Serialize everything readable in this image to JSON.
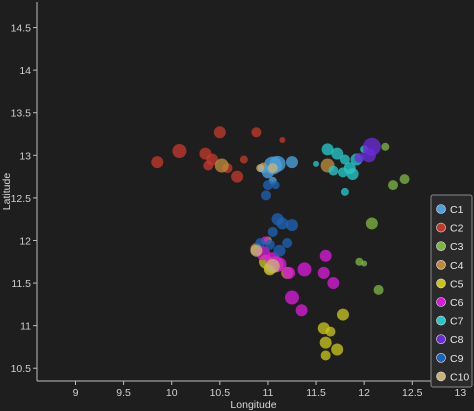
{
  "chart_data": {
    "type": "scatter",
    "xlabel": "Longitude",
    "ylabel": "Latitude",
    "xlim": [
      8.6,
      13.1
    ],
    "ylim": [
      10.35,
      14.8
    ],
    "xticks": [
      "9",
      "9.5",
      "10",
      "10.5",
      "11",
      "11.5",
      "12",
      "12.5",
      "13"
    ],
    "yticks": [
      "10.5",
      "11",
      "11.5",
      "12",
      "12.5",
      "13",
      "13.5",
      "14",
      "14.5"
    ],
    "grid": false,
    "legend_position": "bottom-right",
    "series": [
      {
        "name": "C1",
        "color": "#4aa3df",
        "points": [
          {
            "x": 11.05,
            "y": 12.88,
            "s": 9
          },
          {
            "x": 11.1,
            "y": 12.9,
            "s": 8
          },
          {
            "x": 11.0,
            "y": 12.8,
            "s": 6
          },
          {
            "x": 10.95,
            "y": 12.85,
            "s": 5
          },
          {
            "x": 11.25,
            "y": 12.92,
            "s": 6
          },
          {
            "x": 11.05,
            "y": 12.7,
            "s": 4
          }
        ]
      },
      {
        "name": "C2",
        "color": "#c0392b",
        "points": [
          {
            "x": 9.85,
            "y": 12.92,
            "s": 6
          },
          {
            "x": 10.08,
            "y": 13.05,
            "s": 7
          },
          {
            "x": 10.35,
            "y": 13.02,
            "s": 6
          },
          {
            "x": 10.42,
            "y": 12.95,
            "s": 6
          },
          {
            "x": 10.5,
            "y": 13.27,
            "s": 6
          },
          {
            "x": 10.58,
            "y": 12.85,
            "s": 5
          },
          {
            "x": 10.68,
            "y": 12.75,
            "s": 6
          },
          {
            "x": 10.38,
            "y": 12.88,
            "s": 5
          },
          {
            "x": 10.75,
            "y": 12.95,
            "s": 4
          },
          {
            "x": 10.88,
            "y": 13.27,
            "s": 5
          },
          {
            "x": 11.15,
            "y": 13.18,
            "s": 3
          }
        ]
      },
      {
        "name": "C3",
        "color": "#7cb342",
        "points": [
          {
            "x": 12.3,
            "y": 12.65,
            "s": 5
          },
          {
            "x": 12.42,
            "y": 12.72,
            "s": 5
          },
          {
            "x": 12.22,
            "y": 13.1,
            "s": 4
          },
          {
            "x": 12.08,
            "y": 12.2,
            "s": 6
          },
          {
            "x": 12.15,
            "y": 11.42,
            "s": 5
          },
          {
            "x": 11.95,
            "y": 11.75,
            "s": 4
          },
          {
            "x": 12.0,
            "y": 11.73,
            "s": 3
          }
        ]
      },
      {
        "name": "C4",
        "color": "#c08a3a",
        "points": [
          {
            "x": 10.52,
            "y": 12.88,
            "s": 7
          },
          {
            "x": 10.95,
            "y": 12.88,
            "s": 3
          },
          {
            "x": 11.62,
            "y": 12.88,
            "s": 7
          },
          {
            "x": 11.0,
            "y": 12.0,
            "s": 4
          },
          {
            "x": 10.88,
            "y": 11.9,
            "s": 6
          },
          {
            "x": 11.08,
            "y": 11.72,
            "s": 8
          },
          {
            "x": 11.02,
            "y": 11.68,
            "s": 6
          },
          {
            "x": 11.2,
            "y": 11.62,
            "s": 6
          }
        ]
      },
      {
        "name": "C5",
        "color": "#c7c31b",
        "points": [
          {
            "x": 10.98,
            "y": 11.75,
            "s": 7
          },
          {
            "x": 11.02,
            "y": 11.66,
            "s": 6
          },
          {
            "x": 11.78,
            "y": 11.13,
            "s": 6
          },
          {
            "x": 11.58,
            "y": 10.97,
            "s": 6
          },
          {
            "x": 11.65,
            "y": 10.93,
            "s": 5
          },
          {
            "x": 11.6,
            "y": 10.8,
            "s": 6
          },
          {
            "x": 11.72,
            "y": 10.72,
            "s": 6
          },
          {
            "x": 11.6,
            "y": 10.65,
            "s": 5
          }
        ]
      },
      {
        "name": "C6",
        "color": "#d81bd8",
        "points": [
          {
            "x": 10.95,
            "y": 11.85,
            "s": 7
          },
          {
            "x": 11.05,
            "y": 11.78,
            "s": 7
          },
          {
            "x": 11.12,
            "y": 11.72,
            "s": 7
          },
          {
            "x": 11.22,
            "y": 11.62,
            "s": 6
          },
          {
            "x": 11.38,
            "y": 11.66,
            "s": 7
          },
          {
            "x": 11.58,
            "y": 11.62,
            "s": 6
          },
          {
            "x": 11.6,
            "y": 11.82,
            "s": 6
          },
          {
            "x": 11.68,
            "y": 11.5,
            "s": 6
          },
          {
            "x": 11.25,
            "y": 11.33,
            "s": 7
          },
          {
            "x": 11.35,
            "y": 11.18,
            "s": 6
          },
          {
            "x": 10.97,
            "y": 12.0,
            "s": 4
          }
        ]
      },
      {
        "name": "C7",
        "color": "#26c6c6",
        "points": [
          {
            "x": 11.62,
            "y": 13.07,
            "s": 6
          },
          {
            "x": 11.72,
            "y": 13.02,
            "s": 6
          },
          {
            "x": 11.8,
            "y": 12.95,
            "s": 5
          },
          {
            "x": 11.85,
            "y": 12.85,
            "s": 6
          },
          {
            "x": 11.92,
            "y": 12.95,
            "s": 6
          },
          {
            "x": 11.68,
            "y": 12.82,
            "s": 5
          },
          {
            "x": 11.78,
            "y": 12.8,
            "s": 5
          },
          {
            "x": 11.88,
            "y": 12.78,
            "s": 6
          },
          {
            "x": 12.0,
            "y": 13.07,
            "s": 4
          },
          {
            "x": 11.8,
            "y": 12.57,
            "s": 4
          },
          {
            "x": 11.5,
            "y": 12.9,
            "s": 3
          }
        ]
      },
      {
        "name": "C8",
        "color": "#6a2bd8",
        "points": [
          {
            "x": 12.08,
            "y": 13.1,
            "s": 9
          },
          {
            "x": 12.05,
            "y": 13.0,
            "s": 7
          },
          {
            "x": 11.95,
            "y": 12.97,
            "s": 5
          }
        ]
      },
      {
        "name": "C9",
        "color": "#1f63b5",
        "points": [
          {
            "x": 10.98,
            "y": 12.53,
            "s": 5
          },
          {
            "x": 11.0,
            "y": 12.65,
            "s": 5
          },
          {
            "x": 11.08,
            "y": 12.65,
            "s": 4
          },
          {
            "x": 11.1,
            "y": 12.25,
            "s": 6
          },
          {
            "x": 11.15,
            "y": 12.2,
            "s": 6
          },
          {
            "x": 11.25,
            "y": 12.18,
            "s": 6
          },
          {
            "x": 11.05,
            "y": 12.1,
            "s": 5
          },
          {
            "x": 11.02,
            "y": 11.95,
            "s": 5
          },
          {
            "x": 11.12,
            "y": 11.88,
            "s": 6
          },
          {
            "x": 11.2,
            "y": 11.97,
            "s": 5
          },
          {
            "x": 10.92,
            "y": 11.97,
            "s": 5
          }
        ]
      },
      {
        "name": "C10",
        "color": "#c8b27a",
        "points": [
          {
            "x": 10.92,
            "y": 12.85,
            "s": 4
          },
          {
            "x": 11.05,
            "y": 12.85,
            "s": 5
          },
          {
            "x": 10.88,
            "y": 11.88,
            "s": 6
          },
          {
            "x": 11.05,
            "y": 11.7,
            "s": 7
          }
        ]
      }
    ]
  }
}
